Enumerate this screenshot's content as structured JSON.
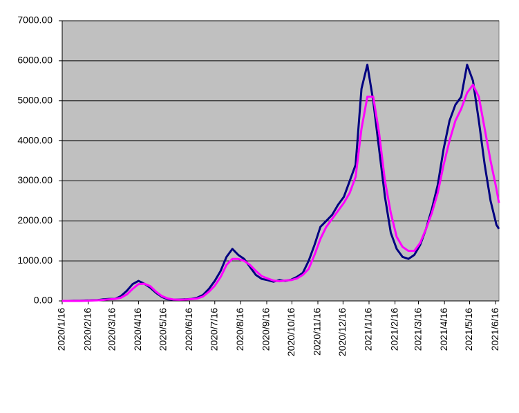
{
  "chart_data": {
    "type": "line",
    "x": [
      "2020/1/16",
      "2020/1/23",
      "2020/1/30",
      "2020/2/6",
      "2020/2/13",
      "2020/2/20",
      "2020/2/27",
      "2020/3/5",
      "2020/3/12",
      "2020/3/19",
      "2020/3/26",
      "2020/4/2",
      "2020/4/9",
      "2020/4/16",
      "2020/4/23",
      "2020/4/30",
      "2020/5/7",
      "2020/5/14",
      "2020/5/21",
      "2020/5/28",
      "2020/6/4",
      "2020/6/11",
      "2020/6/18",
      "2020/6/25",
      "2020/7/2",
      "2020/7/9",
      "2020/7/16",
      "2020/7/23",
      "2020/7/30",
      "2020/8/6",
      "2020/8/13",
      "2020/8/20",
      "2020/8/27",
      "2020/9/3",
      "2020/9/10",
      "2020/9/17",
      "2020/9/24",
      "2020/10/1",
      "2020/10/8",
      "2020/10/15",
      "2020/10/22",
      "2020/10/29",
      "2020/11/5",
      "2020/11/12",
      "2020/11/19",
      "2020/11/26",
      "2020/12/3",
      "2020/12/10",
      "2020/12/17",
      "2020/12/24",
      "2020/12/31",
      "2021/1/7",
      "2021/1/14",
      "2021/1/21",
      "2021/1/28",
      "2021/2/4",
      "2021/2/11",
      "2021/2/18",
      "2021/2/25",
      "2021/3/4",
      "2021/3/11",
      "2021/3/18",
      "2021/3/25",
      "2021/4/1",
      "2021/4/8",
      "2021/4/15",
      "2021/4/22",
      "2021/4/29",
      "2021/5/6",
      "2021/5/13",
      "2021/5/20",
      "2021/5/27",
      "2021/6/3",
      "2021/6/10",
      "2021/6/17",
      "2021/6/20"
    ],
    "series": [
      {
        "color": "#000080",
        "values": [
          0,
          0,
          5,
          5,
          10,
          15,
          20,
          40,
          50,
          50,
          120,
          250,
          420,
          500,
          430,
          330,
          200,
          100,
          40,
          30,
          35,
          40,
          50,
          80,
          150,
          300,
          500,
          750,
          1100,
          1300,
          1150,
          1050,
          850,
          650,
          550,
          520,
          480,
          520,
          500,
          530,
          600,
          700,
          1000,
          1400,
          1850,
          2000,
          2150,
          2400,
          2600,
          3000,
          3400,
          5300,
          5900,
          5000,
          3800,
          2600,
          1700,
          1300,
          1100,
          1050,
          1150,
          1400,
          1800,
          2300,
          2900,
          3800,
          4500,
          4900,
          5100,
          5900,
          5500,
          4500,
          3400,
          2500,
          1900,
          1800
        ]
      },
      {
        "color": "#ff00ff",
        "values": [
          0,
          0,
          0,
          2,
          5,
          10,
          15,
          25,
          40,
          50,
          80,
          160,
          300,
          420,
          430,
          370,
          230,
          120,
          60,
          35,
          30,
          35,
          45,
          60,
          110,
          230,
          380,
          600,
          900,
          1050,
          1050,
          1000,
          900,
          750,
          620,
          560,
          510,
          490,
          510,
          520,
          560,
          650,
          800,
          1150,
          1550,
          1850,
          2050,
          2250,
          2450,
          2700,
          3100,
          4300,
          5100,
          5100,
          4200,
          3000,
          2200,
          1600,
          1350,
          1250,
          1250,
          1450,
          1800,
          2200,
          2700,
          3400,
          4000,
          4500,
          4800,
          5200,
          5400,
          5100,
          4300,
          3500,
          2800,
          2450
        ]
      }
    ],
    "xlim": [
      "2020/1/16",
      "2021/6/20"
    ],
    "xticks": [
      "2020/1/16",
      "2020/2/16",
      "2020/3/16",
      "2020/4/16",
      "2020/5/16",
      "2020/6/16",
      "2020/7/16",
      "2020/8/16",
      "2020/9/16",
      "2020/10/16",
      "2020/11/16",
      "2020/12/16",
      "2021/1/16",
      "2021/2/16",
      "2021/3/16",
      "2021/4/16",
      "2021/5/16",
      "2021/6/16"
    ],
    "ylim": [
      0,
      7000
    ],
    "yticks": [
      {
        "value": 0,
        "label": "0.00"
      },
      {
        "value": 1000,
        "label": "1000.00"
      },
      {
        "value": 2000,
        "label": "2000.00"
      },
      {
        "value": 3000,
        "label": "3000.00"
      },
      {
        "value": 4000,
        "label": "4000.00"
      },
      {
        "value": 5000,
        "label": "5000.00"
      },
      {
        "value": 6000,
        "label": "6000.00"
      },
      {
        "value": 7000,
        "label": "7000.00"
      }
    ],
    "grid": true,
    "background": "#c0c0c0"
  }
}
